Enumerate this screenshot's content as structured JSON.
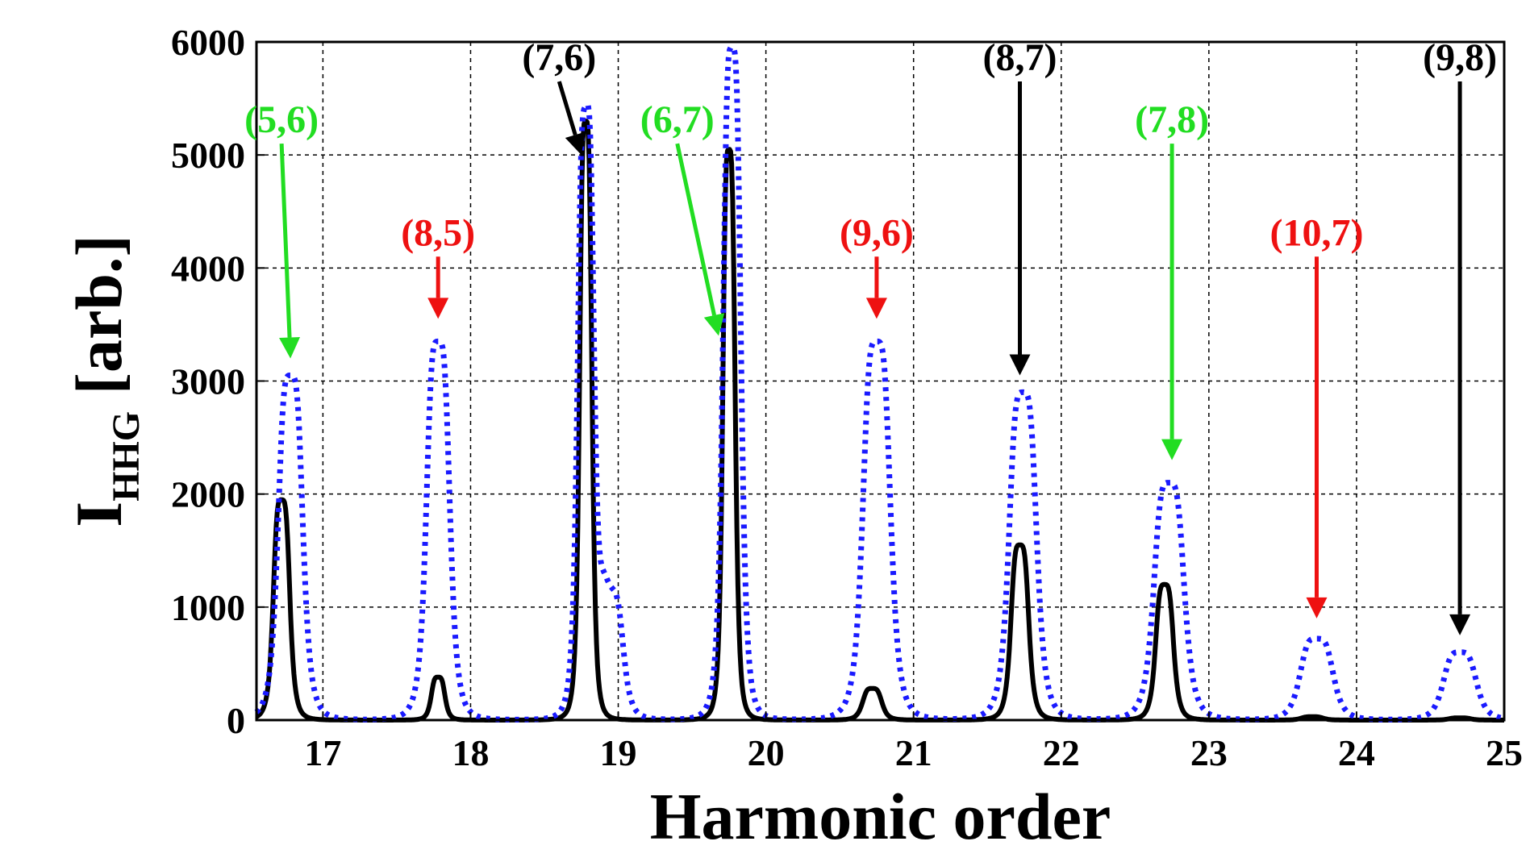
{
  "chart_data": {
    "type": "line",
    "xlabel": "Harmonic order",
    "ylabel": "I",
    "ylabel_sub": "HHG",
    "ylabel_unit": " [arb.]",
    "xlim": [
      16.55,
      25
    ],
    "ylim": [
      0,
      6000
    ],
    "xticks": [
      17,
      18,
      19,
      20,
      21,
      22,
      23,
      24,
      25
    ],
    "yticks": [
      0,
      1000,
      2000,
      3000,
      4000,
      5000,
      6000
    ],
    "xtick_labels": [
      "17",
      "18",
      "19",
      "20",
      "21",
      "22",
      "23",
      "24",
      "25"
    ],
    "ytick_labels": [
      "0",
      "1000",
      "2000",
      "3000",
      "4000",
      "5000",
      "6000"
    ],
    "grid": true,
    "series": [
      {
        "style": "solid",
        "color": "#000000",
        "peaks": [
          {
            "x": 16.72,
            "y": 1950,
            "w": 0.06
          },
          {
            "x": 17.78,
            "y": 380,
            "w": 0.05
          },
          {
            "x": 18.78,
            "y": 5300,
            "w": 0.045
          },
          {
            "x": 19.75,
            "y": 5050,
            "w": 0.045
          },
          {
            "x": 20.72,
            "y": 280,
            "w": 0.07
          },
          {
            "x": 21.72,
            "y": 1550,
            "w": 0.065
          },
          {
            "x": 22.7,
            "y": 1200,
            "w": 0.065
          },
          {
            "x": 23.7,
            "y": 30,
            "w": 0.08
          },
          {
            "x": 24.7,
            "y": 20,
            "w": 0.08
          }
        ]
      },
      {
        "style": "dotted",
        "color": "#1a1aff",
        "peaks": [
          {
            "x": 16.78,
            "y": 3050,
            "w": 0.09
          },
          {
            "x": 17.78,
            "y": 3350,
            "w": 0.085
          },
          {
            "x": 18.78,
            "y": 5350,
            "w": 0.06
          },
          {
            "x": 18.95,
            "y": 1100,
            "w": 0.09
          },
          {
            "x": 19.77,
            "y": 5950,
            "w": 0.065
          },
          {
            "x": 20.75,
            "y": 3350,
            "w": 0.1
          },
          {
            "x": 21.74,
            "y": 2900,
            "w": 0.1
          },
          {
            "x": 22.73,
            "y": 2100,
            "w": 0.11
          },
          {
            "x": 23.73,
            "y": 720,
            "w": 0.12
          },
          {
            "x": 24.7,
            "y": 600,
            "w": 0.12
          }
        ]
      }
    ],
    "annotations": [
      {
        "text": "(5,6)",
        "color": "#22dd22",
        "x": 16.72,
        "y": 5200,
        "ax": 16.78,
        "ay": 3200
      },
      {
        "text": "(8,5)",
        "color": "#ee1111",
        "x": 17.78,
        "y": 4200,
        "ax": 17.78,
        "ay": 3550
      },
      {
        "text": "(7,6)",
        "color": "#000000",
        "x": 18.6,
        "y": 5750,
        "ax": 18.75,
        "ay": 5000
      },
      {
        "text": "(6,7)",
        "color": "#22dd22",
        "x": 19.4,
        "y": 5200,
        "ax": 19.68,
        "ay": 3400
      },
      {
        "text": "(9,6)",
        "color": "#ee1111",
        "x": 20.75,
        "y": 4200,
        "ax": 20.75,
        "ay": 3550
      },
      {
        "text": "(8,7)",
        "color": "#000000",
        "x": 21.72,
        "y": 5750,
        "ax": 21.72,
        "ay": 3050
      },
      {
        "text": "(7,8)",
        "color": "#22dd22",
        "x": 22.75,
        "y": 5200,
        "ax": 22.75,
        "ay": 2300
      },
      {
        "text": "(10,7)",
        "color": "#ee1111",
        "x": 23.73,
        "y": 4200,
        "ax": 23.73,
        "ay": 900
      },
      {
        "text": "(9,8)",
        "color": "#000000",
        "x": 24.7,
        "y": 5750,
        "ax": 24.7,
        "ay": 750
      }
    ]
  }
}
